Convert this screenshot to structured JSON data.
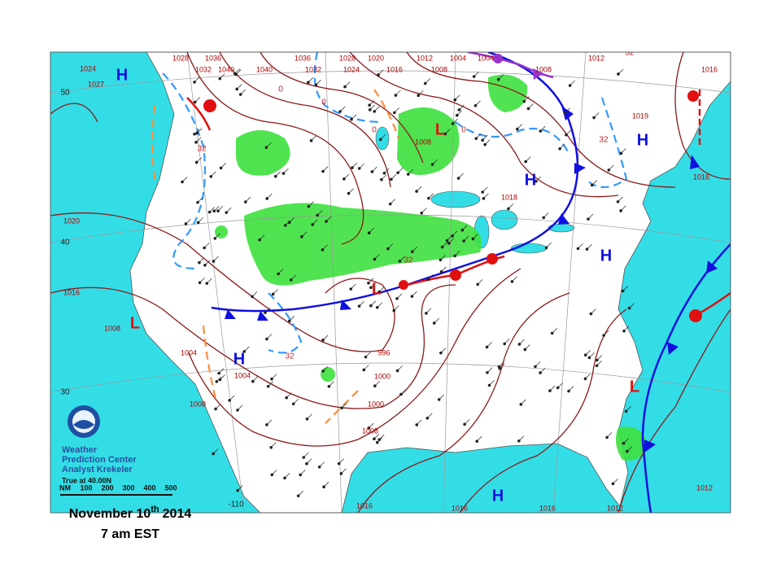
{
  "map": {
    "latitude_labels": [
      "50",
      "40",
      "30"
    ],
    "longitude_label": "-110",
    "pressure_labels": [
      "1024",
      "1027",
      "1028",
      "1036",
      "1032",
      "1040",
      "1040",
      "1036",
      "1032",
      "1028",
      "1024",
      "1020",
      "1016",
      "1012",
      "1008",
      "1004",
      "1004",
      "1008",
      "1012",
      "1016",
      "1019",
      "1018",
      "1008",
      "1020",
      "1016",
      "1008",
      "1004",
      "1004",
      "1008",
      "996",
      "1000",
      "1000",
      "1008",
      "1016",
      "1016",
      "1016",
      "1012",
      "1012",
      "1016"
    ],
    "temperature_labels": [
      "32",
      "32",
      "32",
      "32",
      "32",
      "0",
      "0",
      "0",
      "0"
    ],
    "highs": [
      "H",
      "H",
      "H",
      "H",
      "H",
      "H"
    ],
    "lows": [
      "L",
      "L",
      "L",
      "L"
    ]
  },
  "credit": {
    "lines": [
      "Weather",
      "Prediction Center",
      "Analyst Krekeler"
    ],
    "projection": "True at 40.00N",
    "scale": [
      "NM",
      "100",
      "200",
      "300",
      "400",
      "500"
    ]
  },
  "caption": {
    "date": "November 10",
    "date_suffix": "th",
    "year": "2014",
    "time": "7 am EST"
  }
}
